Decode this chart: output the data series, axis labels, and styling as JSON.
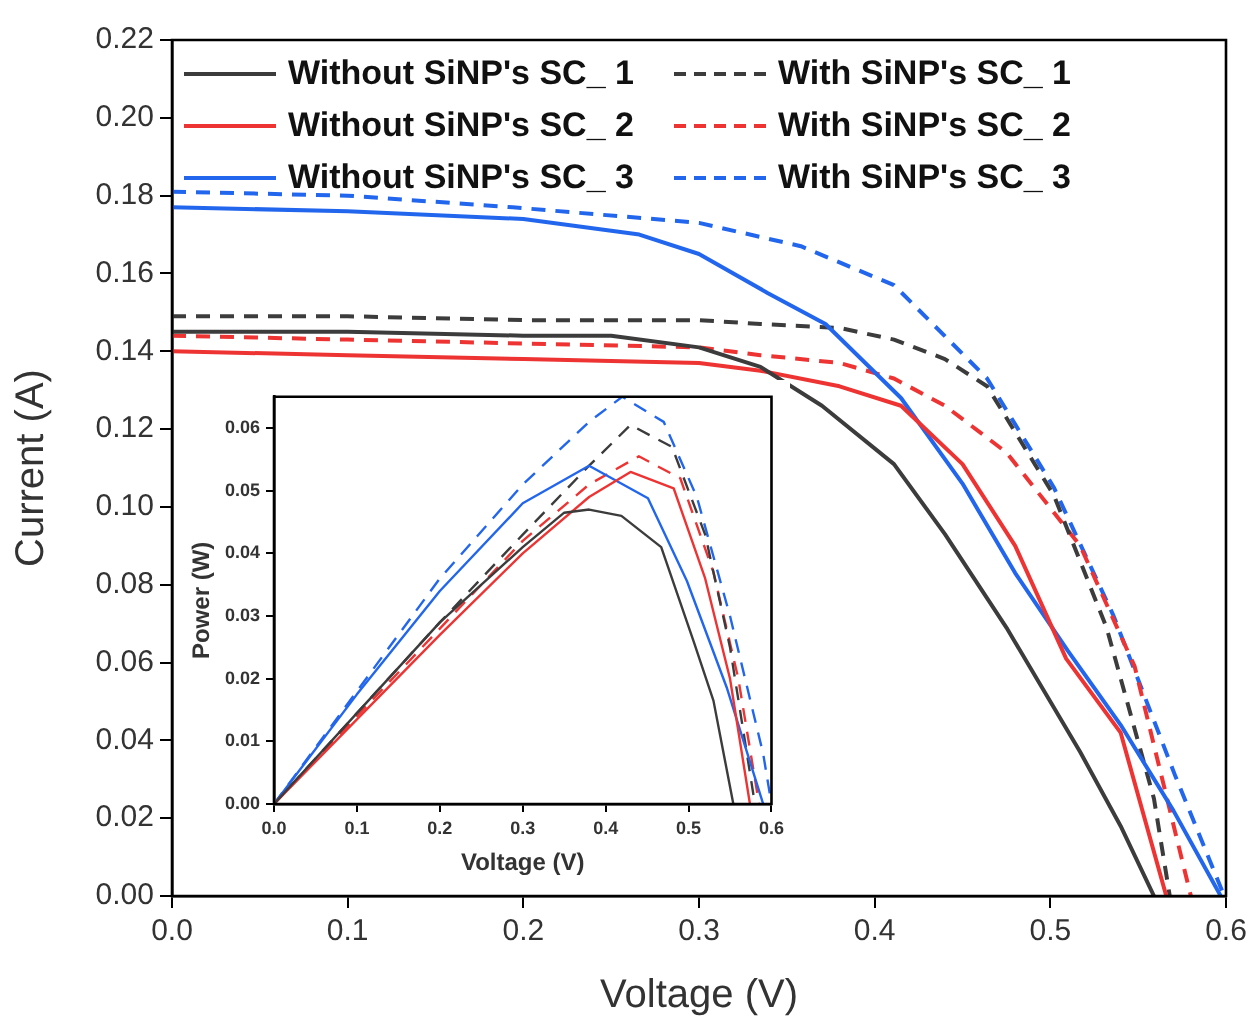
{
  "chart_data": [
    {
      "type": "line",
      "xlabel": "Voltage (V)",
      "ylabel": "Current (A)",
      "xlim": [
        0,
        0.6
      ],
      "ylim": [
        0,
        0.22
      ],
      "xticks": [
        {
          "value": 0,
          "label": "0.0"
        },
        0.1,
        0.2,
        0.3,
        0.4,
        0.5,
        0.6
      ],
      "yticks": [
        {
          "value": 0,
          "label": "0.00"
        },
        0.02,
        0.04,
        0.06,
        0.08,
        {
          "value": 0.1,
          "label": "0.10"
        },
        0.12,
        0.14,
        0.16,
        0.18,
        {
          "value": 0.2,
          "label": "0.20"
        },
        0.22
      ],
      "grid": false,
      "legend": "top",
      "series": [
        {
          "name": "Without SiNP's SC_ 1",
          "color": "#3c3c3c",
          "line_style": "solid",
          "x": [
            0,
            0.1,
            0.2,
            0.25,
            0.3,
            0.335,
            0.37,
            0.411,
            0.44,
            0.475,
            0.517,
            0.54,
            0.559
          ],
          "values": [
            0.145,
            0.145,
            0.144,
            0.144,
            0.141,
            0.136,
            0.126,
            0.111,
            0.093,
            0.069,
            0.037,
            0.018,
            0
          ]
        },
        {
          "name": "Without SiNP's SC_ 2",
          "color": "#ee3333",
          "line_style": "solid",
          "x": [
            0,
            0.1,
            0.2,
            0.3,
            0.335,
            0.38,
            0.415,
            0.45,
            0.48,
            0.509,
            0.54,
            0.566
          ],
          "values": [
            0.14,
            0.139,
            0.138,
            0.137,
            0.135,
            0.131,
            0.126,
            0.111,
            0.09,
            0.061,
            0.042,
            0
          ]
        },
        {
          "name": "Without SiNP's SC_ 3",
          "color": "#2266ee",
          "line_style": "solid",
          "x": [
            0,
            0.1,
            0.2,
            0.266,
            0.3,
            0.339,
            0.372,
            0.415,
            0.45,
            0.48,
            0.51,
            0.54,
            0.57,
            0.597
          ],
          "values": [
            0.177,
            0.176,
            0.174,
            0.17,
            0.165,
            0.155,
            0.147,
            0.128,
            0.106,
            0.083,
            0.063,
            0.044,
            0.022,
            0
          ]
        },
        {
          "name": "With SiNP's SC_ 1",
          "color": "#3c3c3c",
          "line_style": "dashed",
          "x": [
            0,
            0.1,
            0.2,
            0.3,
            0.335,
            0.38,
            0.411,
            0.44,
            0.464,
            0.502,
            0.532,
            0.559,
            0.568
          ],
          "values": [
            0.149,
            0.149,
            0.148,
            0.148,
            0.147,
            0.146,
            0.143,
            0.138,
            0.131,
            0.103,
            0.069,
            0.025,
            0
          ]
        },
        {
          "name": "With SiNP's SC_ 2",
          "color": "#ee3333",
          "line_style": "dashed",
          "x": [
            0,
            0.1,
            0.2,
            0.3,
            0.335,
            0.38,
            0.411,
            0.44,
            0.475,
            0.517,
            0.548,
            0.58
          ],
          "values": [
            0.144,
            0.143,
            0.142,
            0.141,
            0.139,
            0.137,
            0.133,
            0.126,
            0.114,
            0.09,
            0.059,
            0
          ]
        },
        {
          "name": "With SiNP's SC_ 3",
          "color": "#2266ee",
          "line_style": "dashed",
          "x": [
            0,
            0.1,
            0.194,
            0.3,
            0.358,
            0.411,
            0.464,
            0.502,
            0.536,
            0.571,
            0.599
          ],
          "values": [
            0.181,
            0.18,
            0.177,
            0.173,
            0.167,
            0.157,
            0.133,
            0.105,
            0.072,
            0.031,
            0
          ]
        }
      ]
    },
    {
      "type": "line",
      "xlabel": "Voltage (V)",
      "ylabel": "Power (W)",
      "xlim": [
        0,
        0.6
      ],
      "ylim": [
        0,
        0.065
      ],
      "xticks": [
        {
          "value": 0,
          "label": "0.0"
        },
        0.1,
        0.2,
        0.3,
        0.4,
        0.5,
        0.6
      ],
      "yticks": [
        {
          "value": 0,
          "label": "0.00"
        },
        0.01,
        0.02,
        0.03,
        0.04,
        0.05,
        0.06
      ],
      "grid": false,
      "series": [
        {
          "color": "#3c3c3c",
          "line_style": "solid",
          "x": [
            0,
            0.1,
            0.2,
            0.3,
            0.35,
            0.38,
            0.419,
            0.467,
            0.506,
            0.53,
            0.554
          ],
          "values": [
            0,
            0.0145,
            0.029,
            0.041,
            0.0465,
            0.047,
            0.046,
            0.041,
            0.026,
            0.0165,
            0
          ]
        },
        {
          "color": "#ee3333",
          "line_style": "solid",
          "x": [
            0,
            0.1,
            0.2,
            0.3,
            0.38,
            0.43,
            0.482,
            0.52,
            0.55,
            0.574
          ],
          "values": [
            0,
            0.0135,
            0.027,
            0.04,
            0.049,
            0.053,
            0.0504,
            0.036,
            0.02,
            0
          ]
        },
        {
          "color": "#2266ee",
          "line_style": "solid",
          "x": [
            0,
            0.1,
            0.2,
            0.3,
            0.38,
            0.451,
            0.498,
            0.546,
            0.59
          ],
          "values": [
            0,
            0.0175,
            0.034,
            0.048,
            0.054,
            0.0488,
            0.0356,
            0.0186,
            0
          ]
        },
        {
          "color": "#3c3c3c",
          "line_style": "dashed",
          "x": [
            0,
            0.1,
            0.2,
            0.3,
            0.38,
            0.43,
            0.48,
            0.52,
            0.55,
            0.58
          ],
          "values": [
            0,
            0.0145,
            0.029,
            0.043,
            0.054,
            0.0605,
            0.057,
            0.043,
            0.025,
            0
          ]
        },
        {
          "color": "#ee3333",
          "line_style": "dashed",
          "x": [
            0,
            0.1,
            0.2,
            0.3,
            0.38,
            0.44,
            0.49,
            0.53,
            0.56,
            0.585
          ],
          "values": [
            0,
            0.014,
            0.028,
            0.042,
            0.051,
            0.0555,
            0.052,
            0.037,
            0.02,
            0
          ]
        },
        {
          "color": "#2266ee",
          "line_style": "dashed",
          "x": [
            0,
            0.1,
            0.2,
            0.3,
            0.38,
            0.42,
            0.47,
            0.51,
            0.55,
            0.59,
            0.6
          ],
          "values": [
            0,
            0.018,
            0.036,
            0.051,
            0.061,
            0.065,
            0.061,
            0.049,
            0.03,
            0.008,
            0
          ]
        }
      ]
    }
  ]
}
